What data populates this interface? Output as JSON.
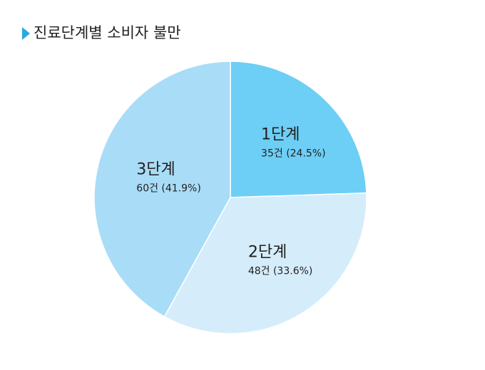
{
  "chart_data": {
    "type": "pie",
    "title": "진료단계별 소비자 불만",
    "categories": [
      "1단계",
      "2단계",
      "3단계"
    ],
    "values": [
      35,
      48,
      60
    ],
    "value_labels": [
      "35건 (24.5%)",
      "48건 (33.6%)",
      "60건 (41.9%)"
    ],
    "colors": [
      "#6dcff6",
      "#d5edfb",
      "#a9ddf7"
    ]
  }
}
